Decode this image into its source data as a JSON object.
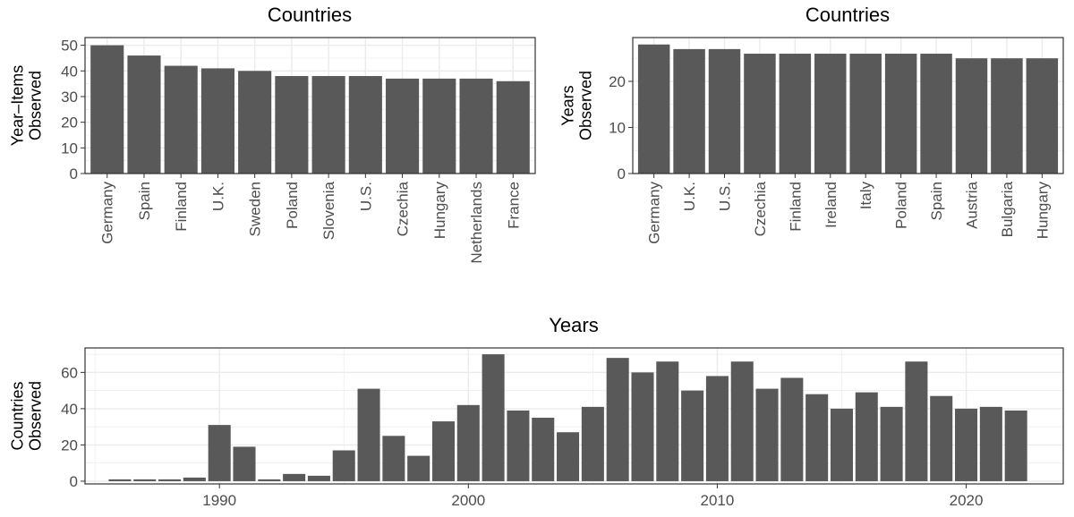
{
  "colors": {
    "bar": "#595959",
    "grid": "#ebebeb",
    "panel_border": "#333333",
    "background": "#ffffff"
  },
  "chart_data": [
    {
      "type": "bar",
      "title": "Countries",
      "xlabel": "",
      "ylabel": "Year–Items Observed",
      "ylabel_lines": [
        "Year–Items",
        "Observed"
      ],
      "categories": [
        "Germany",
        "Spain",
        "Finland",
        "U.K.",
        "Sweden",
        "Poland",
        "Slovenia",
        "U.S.",
        "Czechia",
        "Hungary",
        "Netherlands",
        "France"
      ],
      "values": [
        50,
        46,
        42,
        41,
        40,
        38,
        38,
        38,
        37,
        37,
        37,
        36
      ],
      "ylim": [
        0,
        53
      ],
      "yticks": [
        0,
        10,
        20,
        30,
        40,
        50
      ],
      "grid": true
    },
    {
      "type": "bar",
      "title": "Countries",
      "xlabel": "",
      "ylabel": "Years Observed",
      "ylabel_lines": [
        "Years",
        "Observed"
      ],
      "categories": [
        "Germany",
        "U.K.",
        "U.S.",
        "Czechia",
        "Finland",
        "Ireland",
        "Italy",
        "Poland",
        "Spain",
        "Austria",
        "Bulgaria",
        "Hungary"
      ],
      "values": [
        28,
        27,
        27,
        26,
        26,
        26,
        26,
        26,
        26,
        25,
        25,
        25
      ],
      "ylim": [
        0,
        29.5
      ],
      "yticks": [
        0,
        10,
        20
      ],
      "grid": true
    },
    {
      "type": "bar",
      "title": "Years",
      "xlabel": "",
      "ylabel": "Countries Observed",
      "ylabel_lines": [
        "Countries",
        "Observed"
      ],
      "x": [
        1986,
        1987,
        1988,
        1989,
        1990,
        1991,
        1992,
        1993,
        1994,
        1995,
        1996,
        1997,
        1998,
        1999,
        2000,
        2001,
        2002,
        2003,
        2004,
        2005,
        2006,
        2007,
        2008,
        2009,
        2010,
        2011,
        2012,
        2013,
        2014,
        2015,
        2016,
        2017,
        2018,
        2019,
        2020,
        2021,
        2022
      ],
      "values": [
        1,
        1,
        1,
        2,
        31,
        19,
        1,
        4,
        3,
        17,
        51,
        25,
        14,
        33,
        42,
        70,
        39,
        35,
        27,
        41,
        68,
        60,
        66,
        50,
        58,
        66,
        51,
        57,
        48,
        40,
        49,
        41,
        66,
        47,
        40,
        41,
        39
      ],
      "xlim": [
        1984.6,
        2023.9
      ],
      "ylim": [
        -1.5,
        73.5
      ],
      "xticks": [
        1990,
        2000,
        2010,
        2020
      ],
      "yticks": [
        0,
        20,
        40,
        60
      ],
      "grid": true
    }
  ]
}
